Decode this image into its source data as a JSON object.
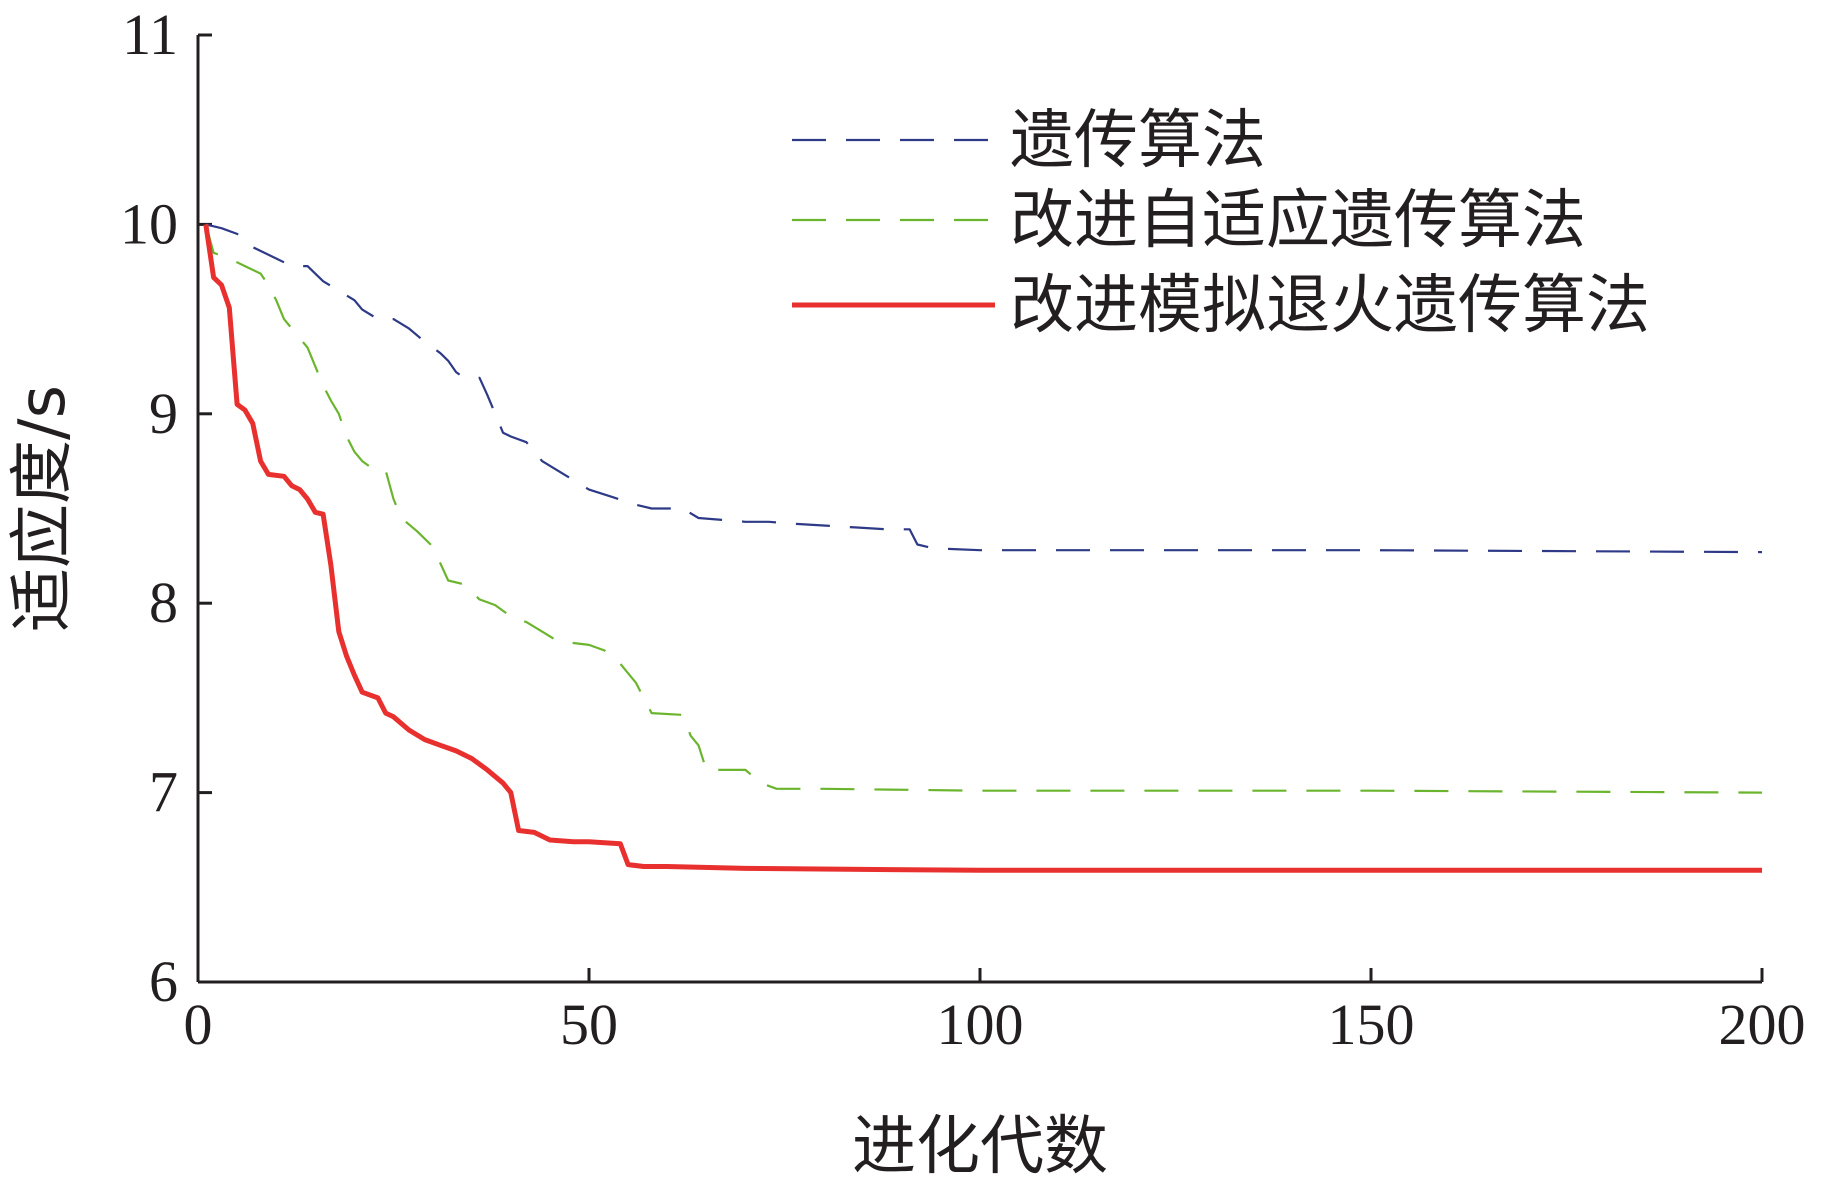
{
  "chart_data": {
    "type": "line",
    "xlabel": "进化代数",
    "ylabel": "适应度/s",
    "xlim": [
      0,
      200
    ],
    "ylim": [
      6,
      11
    ],
    "xticks": [
      0,
      50,
      100,
      150,
      200
    ],
    "yticks": [
      6,
      7,
      8,
      9,
      10,
      11
    ],
    "legend_position": "top-right",
    "grid": false,
    "series": [
      {
        "name": "遗传算法",
        "color": "#2e3a87",
        "style": "dashed",
        "points": [
          [
            1,
            10
          ],
          [
            3,
            9.98
          ],
          [
            5,
            9.95
          ],
          [
            7,
            9.88
          ],
          [
            10,
            9.82
          ],
          [
            12,
            9.78
          ],
          [
            14,
            9.78
          ],
          [
            16,
            9.7
          ],
          [
            18,
            9.65
          ],
          [
            20,
            9.6
          ],
          [
            21,
            9.55
          ],
          [
            23,
            9.5
          ],
          [
            25,
            9.5
          ],
          [
            27,
            9.45
          ],
          [
            29,
            9.38
          ],
          [
            30,
            9.35
          ],
          [
            31,
            9.32
          ],
          [
            32,
            9.28
          ],
          [
            33,
            9.22
          ],
          [
            34,
            9.19
          ],
          [
            36,
            9.19
          ],
          [
            37,
            9.1
          ],
          [
            38,
            9.0
          ],
          [
            39,
            8.9
          ],
          [
            40,
            8.88
          ],
          [
            42,
            8.85
          ],
          [
            44,
            8.75
          ],
          [
            46,
            8.7
          ],
          [
            48,
            8.65
          ],
          [
            50,
            8.6
          ],
          [
            53,
            8.56
          ],
          [
            56,
            8.52
          ],
          [
            58,
            8.5
          ],
          [
            62,
            8.5
          ],
          [
            64,
            8.45
          ],
          [
            67,
            8.44
          ],
          [
            70,
            8.43
          ],
          [
            73,
            8.43
          ],
          [
            76,
            8.42
          ],
          [
            80,
            8.41
          ],
          [
            84,
            8.4
          ],
          [
            88,
            8.39
          ],
          [
            91,
            8.39
          ],
          [
            92,
            8.31
          ],
          [
            94,
            8.29
          ],
          [
            100,
            8.28
          ],
          [
            120,
            8.28
          ],
          [
            150,
            8.28
          ],
          [
            200,
            8.27
          ]
        ]
      },
      {
        "name": "改进自适应遗传算法",
        "color": "#6bb52e",
        "style": "dashed",
        "points": [
          [
            1,
            10
          ],
          [
            2,
            9.85
          ],
          [
            4,
            9.82
          ],
          [
            6,
            9.78
          ],
          [
            8,
            9.74
          ],
          [
            9,
            9.68
          ],
          [
            10,
            9.6
          ],
          [
            11,
            9.5
          ],
          [
            12,
            9.45
          ],
          [
            14,
            9.35
          ],
          [
            15,
            9.25
          ],
          [
            16,
            9.15
          ],
          [
            17,
            9.07
          ],
          [
            18,
            9.0
          ],
          [
            19,
            8.88
          ],
          [
            20,
            8.8
          ],
          [
            21,
            8.75
          ],
          [
            22,
            8.72
          ],
          [
            23,
            8.7
          ],
          [
            24,
            8.7
          ],
          [
            25,
            8.55
          ],
          [
            26,
            8.45
          ],
          [
            28,
            8.38
          ],
          [
            30,
            8.3
          ],
          [
            32,
            8.12
          ],
          [
            34,
            8.1
          ],
          [
            36,
            8.02
          ],
          [
            38,
            7.99
          ],
          [
            40,
            7.93
          ],
          [
            42,
            7.9
          ],
          [
            44,
            7.85
          ],
          [
            46,
            7.8
          ],
          [
            48,
            7.79
          ],
          [
            50,
            7.78
          ],
          [
            52,
            7.75
          ],
          [
            54,
            7.68
          ],
          [
            56,
            7.58
          ],
          [
            58,
            7.42
          ],
          [
            62,
            7.41
          ],
          [
            63,
            7.3
          ],
          [
            64,
            7.25
          ],
          [
            65,
            7.12
          ],
          [
            70,
            7.12
          ],
          [
            72,
            7.05
          ],
          [
            74,
            7.02
          ],
          [
            80,
            7.02
          ],
          [
            100,
            7.01
          ],
          [
            150,
            7.01
          ],
          [
            200,
            7.0
          ]
        ]
      },
      {
        "name": "改进模拟退火遗传算法",
        "color": "#e8312f",
        "style": "solid",
        "points": [
          [
            1,
            10
          ],
          [
            2,
            9.72
          ],
          [
            3,
            9.68
          ],
          [
            4,
            9.56
          ],
          [
            5,
            9.05
          ],
          [
            6,
            9.02
          ],
          [
            7,
            8.95
          ],
          [
            8,
            8.75
          ],
          [
            9,
            8.68
          ],
          [
            11,
            8.67
          ],
          [
            12,
            8.62
          ],
          [
            13,
            8.6
          ],
          [
            14,
            8.55
          ],
          [
            15,
            8.48
          ],
          [
            16,
            8.47
          ],
          [
            17,
            8.2
          ],
          [
            18,
            7.85
          ],
          [
            19,
            7.72
          ],
          [
            20,
            7.62
          ],
          [
            21,
            7.53
          ],
          [
            23,
            7.5
          ],
          [
            24,
            7.42
          ],
          [
            25,
            7.4
          ],
          [
            27,
            7.33
          ],
          [
            29,
            7.28
          ],
          [
            31,
            7.25
          ],
          [
            33,
            7.22
          ],
          [
            35,
            7.18
          ],
          [
            37,
            7.12
          ],
          [
            39,
            7.05
          ],
          [
            40,
            7.0
          ],
          [
            41,
            6.8
          ],
          [
            43,
            6.79
          ],
          [
            45,
            6.75
          ],
          [
            48,
            6.74
          ],
          [
            50,
            6.74
          ],
          [
            54,
            6.73
          ],
          [
            55,
            6.62
          ],
          [
            57,
            6.61
          ],
          [
            60,
            6.61
          ],
          [
            70,
            6.6
          ],
          [
            100,
            6.59
          ],
          [
            150,
            6.59
          ],
          [
            200,
            6.59
          ]
        ]
      }
    ]
  }
}
